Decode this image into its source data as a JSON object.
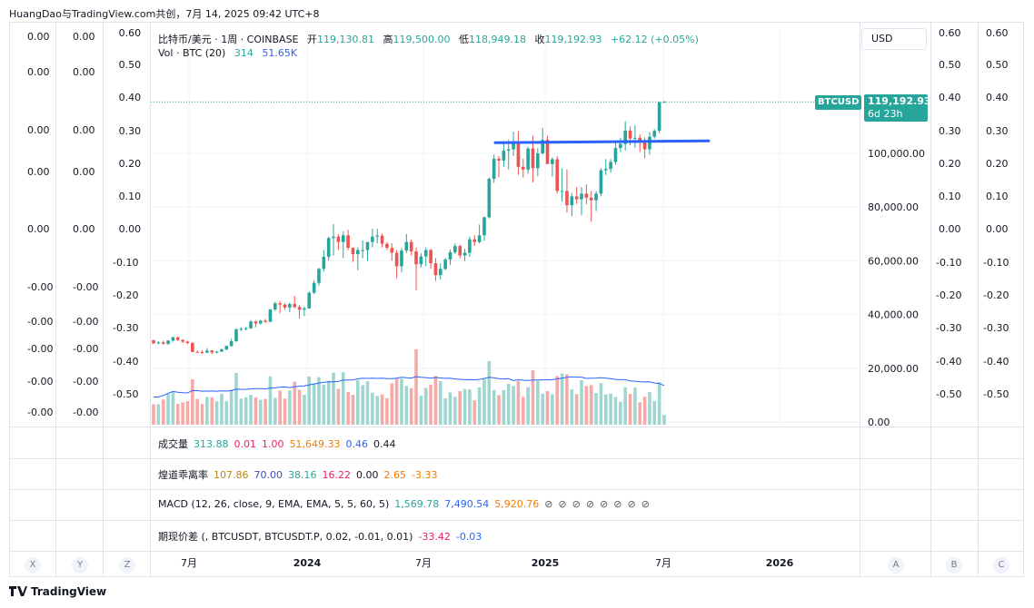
{
  "header": {
    "title": "HuangDao与TradingView.com共创，7月 14, 2025 09:42 UTC+8"
  },
  "legend": {
    "line1": {
      "symbol": "比特币/美元 · 1周 · COINBASE",
      "open_label": "开",
      "open": "119,130.81",
      "high_label": "高",
      "high": "119,500.00",
      "low_label": "低",
      "low": "118,949.18",
      "close_label": "收",
      "close": "119,192.93",
      "change": "+62.12 (+0.05%)"
    },
    "line2": {
      "name": "Vol · BTC (20)",
      "v1": "314",
      "v2": "51.65K"
    }
  },
  "currency_button": "USD",
  "price_tag": {
    "symbol": "BTCUSD",
    "price": "119,192.93",
    "countdown": "6d 23h"
  },
  "left_cols": {
    "col1": [
      "0.00",
      "0.00",
      "0.00",
      "0.00",
      "0.00",
      "-0.00",
      "-0.00",
      "-0.00",
      "-0.00",
      "-0.00"
    ],
    "col2": [
      "0.00",
      "0.00",
      "0.00",
      "0.00",
      "0.00",
      "-0.00",
      "-0.00",
      "-0.00",
      "-0.00",
      "-0.00"
    ],
    "col3": [
      "0.60",
      "0.50",
      "0.40",
      "0.30",
      "0.20",
      "0.10",
      "0.00",
      "-0.10",
      "-0.20",
      "-0.30",
      "-0.40",
      "-0.50"
    ]
  },
  "right_cols": {
    "col_a": [
      "0.60",
      "0.50",
      "0.40",
      "0.30",
      "0.20",
      "0.10",
      "0.00",
      "-0.10",
      "-0.20",
      "-0.30",
      "-0.40",
      "-0.50"
    ],
    "col_b": [
      "0.60",
      "0.50",
      "0.40",
      "0.30",
      "0.20",
      "0.10",
      "0.00",
      "-0.10",
      "-0.20",
      "-0.30",
      "-0.40",
      "-0.50"
    ]
  },
  "indicators": [
    {
      "name": "成交量",
      "values": [
        "313.88",
        "0.01",
        "1.00",
        "51,649.33",
        "0.46",
        "0.44"
      ],
      "colors": [
        "#26a69a",
        "#e91e63",
        "#e91e63",
        "#f57c00",
        "#2962ff",
        "#131722"
      ]
    },
    {
      "name": "煌道乖离率",
      "values": [
        "107.86",
        "70.00",
        "38.16",
        "16.22",
        "0.00",
        "2.65",
        "-3.33"
      ],
      "colors": [
        "#b8860b",
        "#3f51b5",
        "#26a69a",
        "#e91e63",
        "#131722",
        "#f57c00",
        "#f57c00"
      ]
    },
    {
      "name": "MACD (12, 26, close, 9, EMA, EMA, 5, 5, 60, 5)",
      "values": [
        "1,569.78",
        "7,490.54",
        "5,920.76",
        "⊘",
        "⊘",
        "⊘",
        "⊘",
        "⊘",
        "⊘",
        "⊘",
        "⊘"
      ],
      "colors": [
        "#26a69a",
        "#2962ff",
        "#f57c00",
        "#555",
        "#555",
        "#555",
        "#555",
        "#555",
        "#555",
        "#555",
        "#555"
      ]
    },
    {
      "name": "期现价差 (, BTCUSDT, BTCUSDT.P, 0.02, -0.01, 0.01)",
      "values": [
        "-33.42",
        "-0.03"
      ],
      "colors": [
        "#e91e63",
        "#2962ff"
      ]
    }
  ],
  "bottom_letters": [
    "X",
    "Y",
    "Z",
    "A",
    "B",
    "C"
  ],
  "footer": {
    "brand": "TradingView"
  },
  "chart_data": {
    "type": "candlestick",
    "symbol": "BTCUSD",
    "interval": "1W",
    "x_ticks": [
      "7月",
      "2024",
      "7月",
      "2025",
      "7月",
      "2026"
    ],
    "y_ticks": [
      "0.00",
      "20,000.00",
      "40,000.00",
      "60,000.00",
      "80,000.00",
      "100,000.00"
    ],
    "ylim": [
      0,
      128000
    ],
    "close_price": 119192.93,
    "candles_ohlc": [
      [
        30400,
        30600,
        29000,
        29300
      ],
      [
        29300,
        30100,
        28900,
        29600
      ],
      [
        29600,
        30300,
        28800,
        29100
      ],
      [
        29100,
        30500,
        28600,
        30300
      ],
      [
        30300,
        31800,
        29900,
        31500
      ],
      [
        31500,
        31800,
        30100,
        30500
      ],
      [
        30500,
        30900,
        29400,
        29900
      ],
      [
        29900,
        30200,
        28900,
        29400
      ],
      [
        29400,
        29800,
        26000,
        26100
      ],
      [
        26100,
        26600,
        25800,
        26000
      ],
      [
        26000,
        26800,
        25400,
        25800
      ],
      [
        25800,
        27500,
        25600,
        26600
      ],
      [
        26600,
        26800,
        25200,
        25900
      ],
      [
        25900,
        26400,
        25600,
        26200
      ],
      [
        26200,
        27400,
        26000,
        27000
      ],
      [
        27000,
        28500,
        26700,
        28300
      ],
      [
        28300,
        30900,
        27900,
        30100
      ],
      [
        30100,
        34900,
        29800,
        34500
      ],
      [
        34500,
        35300,
        33800,
        34700
      ],
      [
        34700,
        35400,
        34100,
        34900
      ],
      [
        34900,
        37900,
        34600,
        37400
      ],
      [
        37400,
        37900,
        35200,
        36700
      ],
      [
        36700,
        38000,
        36200,
        37700
      ],
      [
        37700,
        38400,
        36800,
        37300
      ],
      [
        37300,
        42000,
        37100,
        41900
      ],
      [
        41900,
        44700,
        41300,
        44200
      ],
      [
        44200,
        45000,
        40500,
        43700
      ],
      [
        43700,
        44200,
        41800,
        42600
      ],
      [
        42600,
        44300,
        40900,
        43900
      ],
      [
        43900,
        47000,
        42300,
        42800
      ],
      [
        42800,
        43500,
        38500,
        41800
      ],
      [
        41800,
        42900,
        39400,
        42300
      ],
      [
        42300,
        48600,
        42100,
        48100
      ],
      [
        48100,
        52800,
        47600,
        51800
      ],
      [
        51800,
        57400,
        50800,
        57000
      ],
      [
        57000,
        64000,
        56000,
        61500
      ],
      [
        61500,
        69000,
        60000,
        68500
      ],
      [
        68500,
        73700,
        62000,
        69000
      ],
      [
        69000,
        70000,
        64000,
        67000
      ],
      [
        67000,
        71000,
        61000,
        69500
      ],
      [
        69500,
        71500,
        64000,
        64800
      ],
      [
        64800,
        65000,
        59600,
        62500
      ],
      [
        62500,
        65000,
        56500,
        64000
      ],
      [
        64000,
        67600,
        61000,
        64000
      ],
      [
        64000,
        67000,
        60000,
        67000
      ],
      [
        67000,
        72000,
        65000,
        69000
      ],
      [
        69000,
        71900,
        66500,
        69400
      ],
      [
        69400,
        70100,
        65000,
        66300
      ],
      [
        66300,
        67000,
        64000,
        64800
      ],
      [
        64800,
        66500,
        60000,
        63000
      ],
      [
        63000,
        64000,
        53500,
        58000
      ],
      [
        58000,
        64800,
        55800,
        63800
      ],
      [
        63800,
        70000,
        62900,
        67000
      ],
      [
        67000,
        68000,
        62000,
        63500
      ],
      [
        63500,
        65000,
        49000,
        58700
      ],
      [
        58700,
        62800,
        57500,
        61600
      ],
      [
        61600,
        65000,
        58000,
        64000
      ],
      [
        64000,
        64500,
        57000,
        59100
      ],
      [
        59100,
        61000,
        52500,
        54700
      ],
      [
        54700,
        59000,
        53000,
        57000
      ],
      [
        57000,
        61000,
        56500,
        60500
      ],
      [
        60500,
        64200,
        58500,
        63200
      ],
      [
        63200,
        66500,
        62500,
        65500
      ],
      [
        65500,
        66000,
        61000,
        62000
      ],
      [
        62000,
        64500,
        59900,
        63000
      ],
      [
        63000,
        69000,
        61500,
        68000
      ],
      [
        68000,
        69500,
        65500,
        67000
      ],
      [
        67000,
        73500,
        66500,
        69500
      ],
      [
        69500,
        76500,
        67500,
        76200
      ],
      [
        76200,
        91000,
        75800,
        90500
      ],
      [
        90500,
        99500,
        89000,
        98000
      ],
      [
        98000,
        99000,
        91000,
        97300
      ],
      [
        97300,
        104000,
        95000,
        101000
      ],
      [
        101000,
        105000,
        94000,
        101500
      ],
      [
        101500,
        108000,
        99000,
        104500
      ],
      [
        104500,
        108300,
        92000,
        95000
      ],
      [
        95000,
        98000,
        91000,
        94000
      ],
      [
        94000,
        102500,
        92500,
        101800
      ],
      [
        101800,
        106500,
        89200,
        94500
      ],
      [
        94500,
        102000,
        91500,
        100000
      ],
      [
        100000,
        109500,
        99500,
        105000
      ],
      [
        105000,
        106500,
        96000,
        96000
      ],
      [
        96000,
        98500,
        91300,
        97800
      ],
      [
        97800,
        99000,
        85000,
        86000
      ],
      [
        86000,
        94400,
        82000,
        86000
      ],
      [
        86000,
        94000,
        78000,
        80700
      ],
      [
        80700,
        85300,
        76600,
        84000
      ],
      [
        84000,
        87500,
        81200,
        82900
      ],
      [
        82900,
        87400,
        77000,
        85000
      ],
      [
        85000,
        88500,
        81000,
        83500
      ],
      [
        83500,
        86000,
        74500,
        82500
      ],
      [
        82500,
        86000,
        78500,
        85000
      ],
      [
        85000,
        94500,
        84000,
        93700
      ],
      [
        93700,
        97800,
        92000,
        94200
      ],
      [
        94200,
        97900,
        92800,
        96800
      ],
      [
        96800,
        104000,
        95800,
        102000
      ],
      [
        102000,
        105800,
        100500,
        103500
      ],
      [
        103500,
        111900,
        101000,
        108500
      ],
      [
        108500,
        110000,
        103000,
        105500
      ],
      [
        105500,
        110500,
        102000,
        105800
      ],
      [
        105800,
        107000,
        100500,
        104500
      ],
      [
        104500,
        106000,
        98200,
        101500
      ],
      [
        101500,
        108000,
        99500,
        106200
      ],
      [
        106200,
        109000,
        105500,
        108400
      ],
      [
        108400,
        118900,
        107500,
        119100
      ],
      [
        119100,
        119500,
        118900,
        119193
      ]
    ],
    "volume_ma_label": "Vol · BTC (20)"
  }
}
